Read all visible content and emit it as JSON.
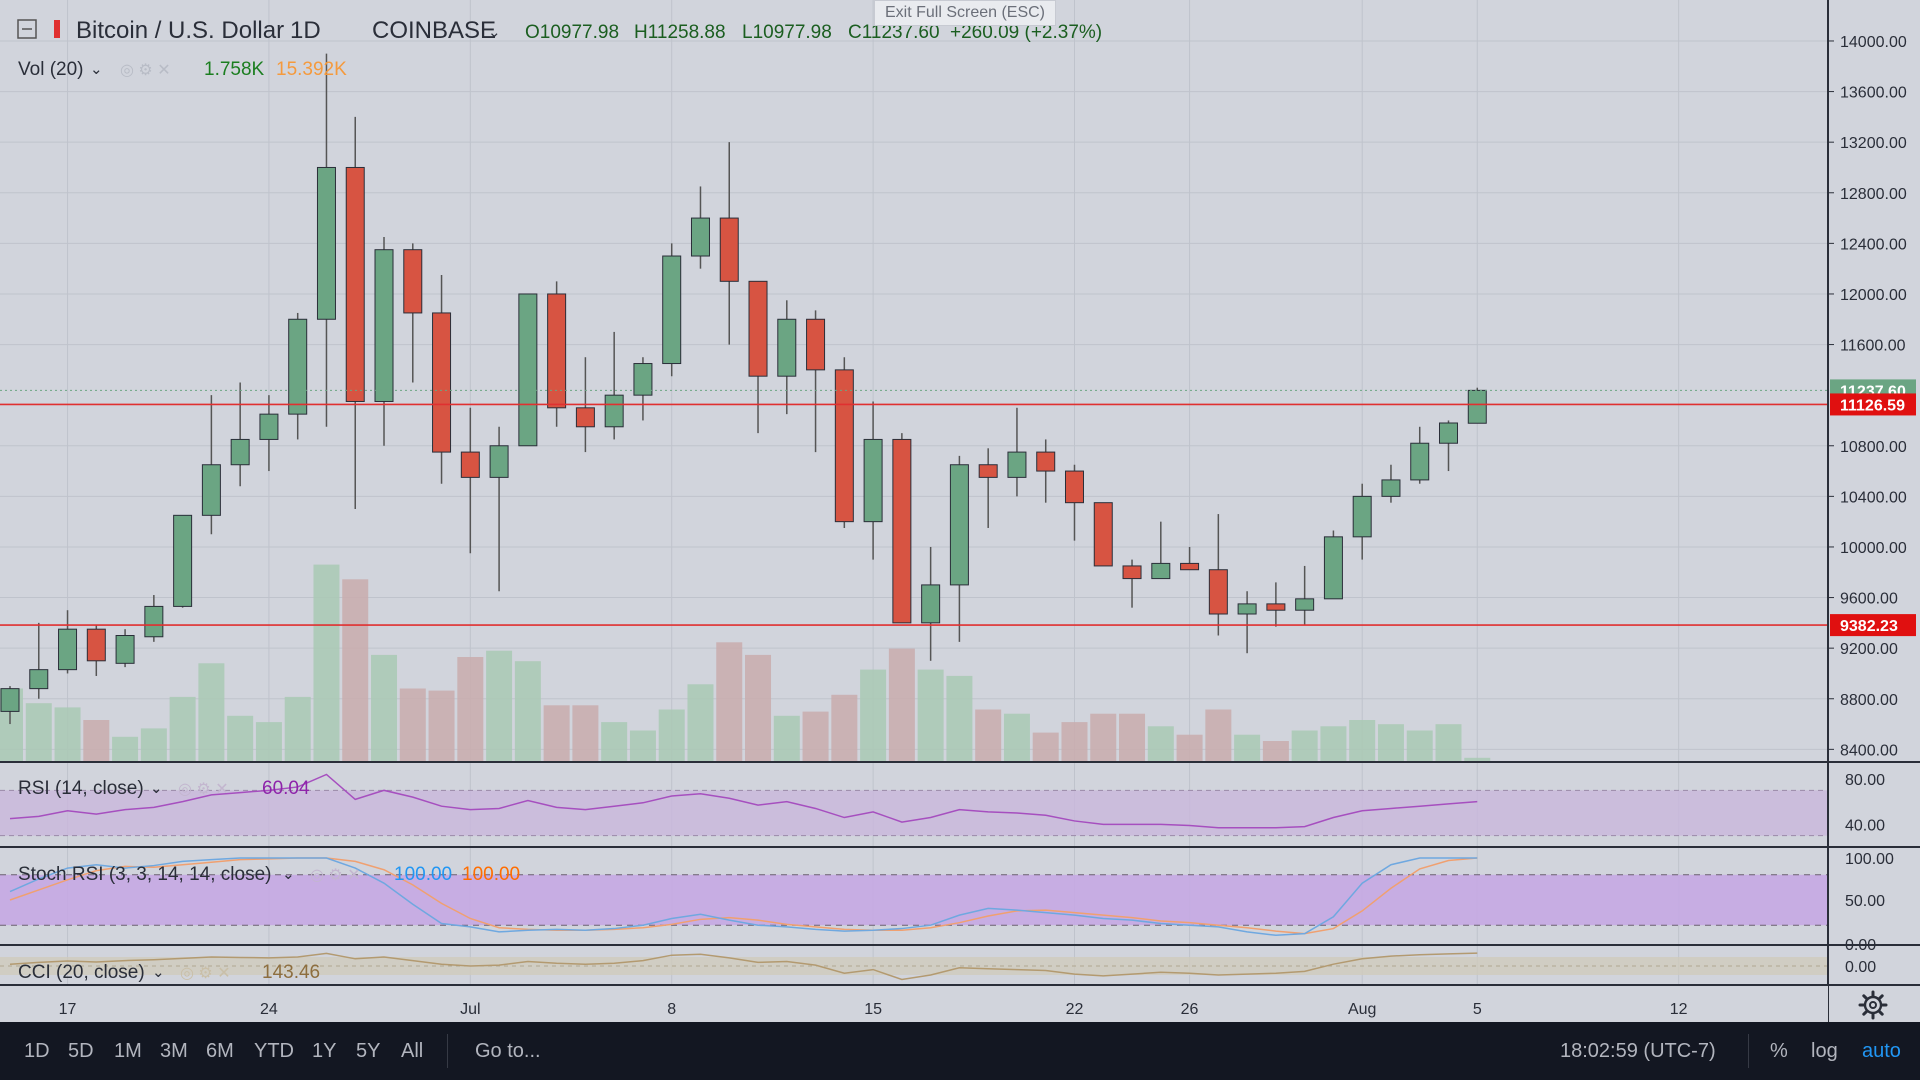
{
  "header": {
    "symbol": "Bitcoin / U.S. Dollar",
    "interval": "1D",
    "exchange": "COINBASE",
    "ohlc": {
      "o": "O10977.98",
      "h": "H11258.88",
      "l": "L10977.98",
      "c": "C11237.60"
    },
    "change": "+260.09 (+2.37%)",
    "fullscreen_hint": "Exit Full Screen (ESC)"
  },
  "indicators": {
    "vol": {
      "label": "Vol (20)",
      "v1": "1.758K",
      "v2": "15.392K"
    },
    "rsi": {
      "label": "RSI (14, close)",
      "value": "60.04",
      "ticks": [
        "80.00",
        "40.00"
      ]
    },
    "stoch": {
      "label": "Stoch RSI (3, 3, 14, 14, close)",
      "k": "100.00",
      "d": "100.00",
      "ticks": [
        "100.00",
        "50.00",
        "0.00"
      ]
    },
    "cci": {
      "label": "CCI (20, close)",
      "value": "143.46",
      "ticks": [
        "0.00"
      ]
    }
  },
  "price_axis": {
    "ticks": [
      "14000.00",
      "13600.00",
      "13200.00",
      "12800.00",
      "12400.00",
      "12000.00",
      "11600.00",
      "10800.00",
      "10400.00",
      "10000.00",
      "9600.00",
      "9200.00",
      "8800.00",
      "8400.00"
    ],
    "last_price": "11237.60",
    "line_upper": "11126.59",
    "line_lower": "9382.23"
  },
  "time_axis": {
    "labels": [
      "17",
      "24",
      "Jul",
      "8",
      "15",
      "22",
      "26",
      "Aug",
      "5",
      "12"
    ]
  },
  "bottom_bar": {
    "ranges": [
      "1D",
      "5D",
      "1M",
      "3M",
      "6M",
      "YTD",
      "1Y",
      "5Y",
      "All"
    ],
    "goto": "Go to...",
    "time": "18:02:59 (UTC-7)",
    "percent": "%",
    "log": "log",
    "auto": "auto"
  },
  "colors": {
    "up": "#6ba583",
    "down": "#d75442",
    "line": "#e03030",
    "rsi": "#a64fbf",
    "stoch_k": "#2196f3",
    "stoch_d": "#ff6d00",
    "cci": "#8d6e3f"
  },
  "chart_data": {
    "type": "candlestick",
    "title": "Bitcoin / U.S. Dollar 1D COINBASE",
    "ylim": [
      8300,
      14150
    ],
    "candles": [
      {
        "o": 8700,
        "h": 8900,
        "l": 8600,
        "c": 8880
      },
      {
        "o": 8880,
        "h": 9400,
        "l": 8800,
        "c": 9030
      },
      {
        "o": 9030,
        "h": 9500,
        "l": 9000,
        "c": 9350
      },
      {
        "o": 9350,
        "h": 9380,
        "l": 8980,
        "c": 9100
      },
      {
        "o": 9080,
        "h": 9350,
        "l": 9050,
        "c": 9300
      },
      {
        "o": 9290,
        "h": 9620,
        "l": 9250,
        "c": 9530
      },
      {
        "o": 9530,
        "h": 10250,
        "l": 9520,
        "c": 10250
      },
      {
        "o": 10250,
        "h": 11200,
        "l": 10100,
        "c": 10650
      },
      {
        "o": 10650,
        "h": 11300,
        "l": 10480,
        "c": 10850
      },
      {
        "o": 10850,
        "h": 11200,
        "l": 10600,
        "c": 11050
      },
      {
        "o": 11050,
        "h": 11850,
        "l": 10850,
        "c": 11800
      },
      {
        "o": 11800,
        "h": 13900,
        "l": 10950,
        "c": 13000
      },
      {
        "o": 13000,
        "h": 13400,
        "l": 10300,
        "c": 11150
      },
      {
        "o": 11150,
        "h": 12450,
        "l": 10800,
        "c": 12350
      },
      {
        "o": 12350,
        "h": 12400,
        "l": 11300,
        "c": 11850
      },
      {
        "o": 11850,
        "h": 12150,
        "l": 10500,
        "c": 10750
      },
      {
        "o": 10750,
        "h": 11100,
        "l": 9950,
        "c": 10550
      },
      {
        "o": 10550,
        "h": 10950,
        "l": 9650,
        "c": 10800
      },
      {
        "o": 10800,
        "h": 12000,
        "l": 10800,
        "c": 12000
      },
      {
        "o": 12000,
        "h": 12100,
        "l": 10950,
        "c": 11100
      },
      {
        "o": 11100,
        "h": 11500,
        "l": 10750,
        "c": 10950
      },
      {
        "o": 10950,
        "h": 11700,
        "l": 10850,
        "c": 11200
      },
      {
        "o": 11200,
        "h": 11500,
        "l": 11000,
        "c": 11450
      },
      {
        "o": 11450,
        "h": 12400,
        "l": 11350,
        "c": 12300
      },
      {
        "o": 12300,
        "h": 12850,
        "l": 12200,
        "c": 12600
      },
      {
        "o": 12600,
        "h": 13200,
        "l": 11600,
        "c": 12100
      },
      {
        "o": 12100,
        "h": 12100,
        "l": 10900,
        "c": 11350
      },
      {
        "o": 11350,
        "h": 11950,
        "l": 11050,
        "c": 11800
      },
      {
        "o": 11800,
        "h": 11870,
        "l": 10750,
        "c": 11400
      },
      {
        "o": 11400,
        "h": 11500,
        "l": 10150,
        "c": 10200
      },
      {
        "o": 10200,
        "h": 11150,
        "l": 9900,
        "c": 10850
      },
      {
        "o": 10850,
        "h": 10900,
        "l": 9400,
        "c": 9400
      },
      {
        "o": 9400,
        "h": 10000,
        "l": 9100,
        "c": 9700
      },
      {
        "o": 9700,
        "h": 10720,
        "l": 9250,
        "c": 10650
      },
      {
        "o": 10650,
        "h": 10780,
        "l": 10150,
        "c": 10550
      },
      {
        "o": 10550,
        "h": 11100,
        "l": 10400,
        "c": 10750
      },
      {
        "o": 10750,
        "h": 10850,
        "l": 10350,
        "c": 10600
      },
      {
        "o": 10600,
        "h": 10650,
        "l": 10050,
        "c": 10350
      },
      {
        "o": 10350,
        "h": 10350,
        "l": 9850,
        "c": 9850
      },
      {
        "o": 9850,
        "h": 9900,
        "l": 9520,
        "c": 9750
      },
      {
        "o": 9750,
        "h": 10200,
        "l": 9750,
        "c": 9870
      },
      {
        "o": 9870,
        "h": 10000,
        "l": 9850,
        "c": 9820
      },
      {
        "o": 9820,
        "h": 10260,
        "l": 9300,
        "c": 9470
      },
      {
        "o": 9470,
        "h": 9650,
        "l": 9160,
        "c": 9550
      },
      {
        "o": 9550,
        "h": 9720,
        "l": 9370,
        "c": 9500
      },
      {
        "o": 9500,
        "h": 9850,
        "l": 9380,
        "c": 9590
      },
      {
        "o": 9590,
        "h": 10130,
        "l": 9590,
        "c": 10080
      },
      {
        "o": 10080,
        "h": 10500,
        "l": 9900,
        "c": 10400
      },
      {
        "o": 10400,
        "h": 10650,
        "l": 10350,
        "c": 10530
      },
      {
        "o": 10530,
        "h": 10950,
        "l": 10500,
        "c": 10820
      },
      {
        "o": 10820,
        "h": 11000,
        "l": 10600,
        "c": 10980
      },
      {
        "o": 10978,
        "h": 11259,
        "l": 10978,
        "c": 11238
      }
    ],
    "volume": [
      0.35,
      0.28,
      0.26,
      0.2,
      0.12,
      0.16,
      0.31,
      0.47,
      0.22,
      0.19,
      0.31,
      0.94,
      0.87,
      0.51,
      0.35,
      0.34,
      0.5,
      0.53,
      0.48,
      0.27,
      0.27,
      0.19,
      0.15,
      0.25,
      0.37,
      0.57,
      0.51,
      0.22,
      0.24,
      0.32,
      0.44,
      0.54,
      0.44,
      0.41,
      0.25,
      0.23,
      0.14,
      0.19,
      0.23,
      0.23,
      0.17,
      0.13,
      0.25,
      0.13,
      0.1,
      0.15,
      0.17,
      0.2,
      0.18,
      0.15,
      0.18,
      0.02
    ],
    "rsi": [
      45,
      47,
      52,
      49,
      53,
      55,
      60,
      66,
      68,
      70,
      73,
      84,
      62,
      70,
      64,
      56,
      53,
      54,
      61,
      55,
      53,
      56,
      59,
      65,
      67,
      63,
      57,
      60,
      54,
      46,
      51,
      42,
      46,
      53,
      51,
      50,
      48,
      43,
      40,
      40,
      40,
      39,
      37,
      37,
      37,
      38,
      46,
      52,
      54,
      56,
      58,
      60
    ],
    "stoch_k": [
      60,
      75,
      88,
      92,
      88,
      91,
      96,
      98,
      100,
      100,
      100,
      100,
      88,
      70,
      45,
      22,
      18,
      12,
      14,
      15,
      14,
      16,
      20,
      28,
      33,
      26,
      20,
      18,
      15,
      13,
      14,
      16,
      20,
      32,
      40,
      38,
      35,
      32,
      28,
      26,
      22,
      20,
      18,
      12,
      8,
      10,
      30,
      70,
      92,
      100,
      100,
      100
    ],
    "stoch_d": [
      50,
      62,
      74,
      85,
      90,
      89,
      92,
      95,
      98,
      99,
      100,
      100,
      96,
      86,
      68,
      46,
      28,
      17,
      15,
      14,
      14,
      15,
      17,
      21,
      27,
      29,
      26,
      21,
      18,
      15,
      14,
      14,
      17,
      23,
      31,
      37,
      38,
      35,
      32,
      29,
      25,
      23,
      20,
      17,
      13,
      10,
      16,
      37,
      64,
      87,
      97,
      100
    ],
    "cci": [
      20,
      40,
      55,
      45,
      60,
      70,
      85,
      100,
      95,
      90,
      100,
      140,
      80,
      100,
      60,
      20,
      0,
      10,
      50,
      30,
      20,
      30,
      60,
      120,
      130,
      90,
      40,
      50,
      10,
      -80,
      -40,
      -150,
      -100,
      -20,
      -30,
      -40,
      -50,
      -90,
      -110,
      -90,
      -70,
      -80,
      -100,
      -90,
      -80,
      -60,
      20,
      80,
      110,
      125,
      135,
      143
    ]
  }
}
